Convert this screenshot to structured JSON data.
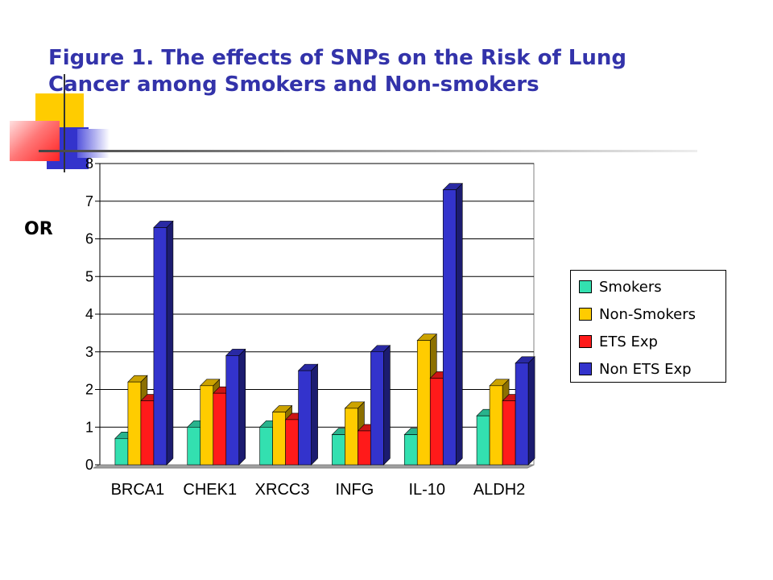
{
  "title": "Figure 1. The effects of SNPs on the Risk of Lung Cancer among Smokers and Non-smokers",
  "colors": {
    "title": "#3333aa",
    "accent_yellow": "#ffcc00",
    "accent_blue": "#3333cc",
    "accent_red": "#ff3333"
  },
  "chart_data": {
    "type": "bar",
    "title": "",
    "xlabel": "",
    "ylabel": "OR",
    "ylim": [
      0,
      8
    ],
    "yticks": [
      "0",
      "1",
      "2",
      "3",
      "4",
      "5",
      "6",
      "7",
      "8"
    ],
    "grid": true,
    "legend_position": "right",
    "three_d": true,
    "categories": [
      "BRCA1",
      "CHEK1",
      "XRCC3",
      "INFG",
      "IL-10",
      "ALDH2"
    ],
    "series": [
      {
        "name": "Smokers",
        "color": "#33e0b0",
        "values": [
          0.7,
          1.0,
          1.0,
          0.8,
          0.8,
          1.3
        ]
      },
      {
        "name": "Non-Smokers",
        "color": "#ffcc00",
        "values": [
          2.2,
          2.1,
          1.4,
          1.5,
          3.3,
          2.1
        ]
      },
      {
        "name": "ETS Exp",
        "color": "#ff1a1a",
        "values": [
          1.7,
          1.9,
          1.2,
          0.9,
          2.3,
          1.7
        ]
      },
      {
        "name": "Non ETS Exp",
        "color": "#3333cc",
        "values": [
          6.3,
          2.9,
          2.5,
          3.0,
          7.3,
          2.7
        ]
      }
    ]
  }
}
